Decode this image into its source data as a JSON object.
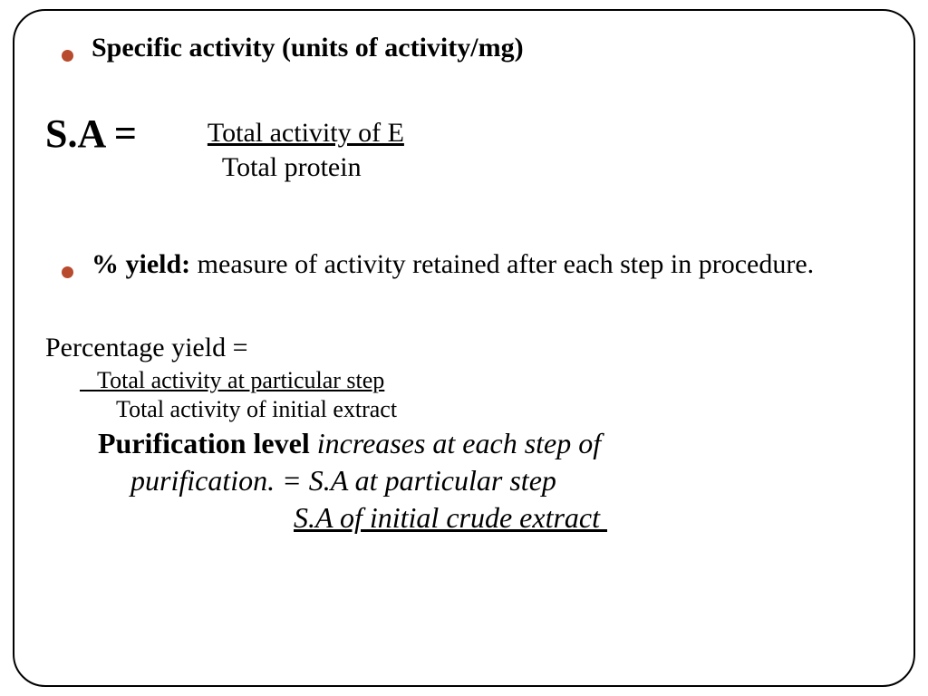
{
  "colors": {
    "bullet": "#b84a2e",
    "text": "#000000",
    "border": "#000000",
    "background": "#ffffff"
  },
  "typography": {
    "font_family": "Georgia / Times New Roman, serif",
    "bullet1_fontsize": 30,
    "sa_label_fontsize": 44,
    "fraction1_fontsize": 30,
    "bullet2_fontsize": 30,
    "py_label_fontsize": 30,
    "fraction2_fontsize": 26,
    "purification_fontsize": 32
  },
  "bullet1": {
    "text": "Specific activity (units of activity/mg)"
  },
  "formula1": {
    "label": "S.A =",
    "numerator": "Total activity of E",
    "denominator": "Total protein"
  },
  "bullet2": {
    "strong": "% yield:",
    "rest": "  measure of activity retained after each step in procedure."
  },
  "py": {
    "label": "Percentage yield =",
    "numerator": "   Total activity at particular step",
    "denominator": "Total activity of initial extract"
  },
  "purification": {
    "strong": "Purification level",
    "italic1": " increases at each step of",
    "line2": "purification. =  S.A at particular step",
    "line3": "S.A of initial crude extract "
  }
}
